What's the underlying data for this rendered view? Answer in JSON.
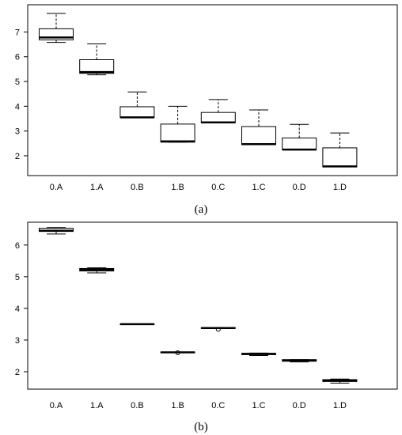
{
  "chart_data": [
    {
      "type": "boxplot",
      "panel_label": "(a)",
      "categories": [
        "0.A",
        "1.A",
        "0.B",
        "1.B",
        "0.C",
        "1.C",
        "0.D",
        "1.D"
      ],
      "yticks": [
        2,
        3,
        4,
        5,
        6,
        7
      ],
      "ylim": [
        1.2,
        8.1
      ],
      "boxes": [
        {
          "min": 6.58,
          "q1": 6.68,
          "median": 6.78,
          "q3": 7.13,
          "max": 7.75
        },
        {
          "min": 5.27,
          "q1": 5.33,
          "median": 5.38,
          "q3": 5.88,
          "max": 6.52
        },
        {
          "min": 3.55,
          "q1": 3.55,
          "median": 3.55,
          "q3": 3.98,
          "max": 4.58
        },
        {
          "min": 2.55,
          "q1": 2.55,
          "median": 2.58,
          "q3": 3.28,
          "max": 4.0
        },
        {
          "min": 3.33,
          "q1": 3.33,
          "median": 3.35,
          "q3": 3.75,
          "max": 4.27
        },
        {
          "min": 2.45,
          "q1": 2.45,
          "median": 2.47,
          "q3": 3.18,
          "max": 3.85
        },
        {
          "min": 2.25,
          "q1": 2.25,
          "median": 2.25,
          "q3": 2.72,
          "max": 3.27
        },
        {
          "min": 1.55,
          "q1": 1.55,
          "median": 1.57,
          "q3": 2.32,
          "max": 2.92
        }
      ],
      "outliers": []
    },
    {
      "type": "boxplot",
      "panel_label": "(b)",
      "categories": [
        "0.A",
        "1.A",
        "0.B",
        "1.B",
        "0.C",
        "1.C",
        "0.D",
        "1.D"
      ],
      "yticks": [
        2,
        3,
        4,
        5,
        6
      ],
      "ylim": [
        1.45,
        6.72
      ],
      "boxes": [
        {
          "min": 6.35,
          "q1": 6.43,
          "median": 6.45,
          "q3": 6.53,
          "max": 6.55
        },
        {
          "min": 5.12,
          "q1": 5.18,
          "median": 5.22,
          "q3": 5.26,
          "max": 5.28
        },
        {
          "min": 3.5,
          "q1": 3.5,
          "median": 3.5,
          "q3": 3.5,
          "max": 3.5
        },
        {
          "min": 2.6,
          "q1": 2.6,
          "median": 2.61,
          "q3": 2.62,
          "max": 2.62
        },
        {
          "min": 3.37,
          "q1": 3.37,
          "median": 3.38,
          "q3": 3.39,
          "max": 3.39
        },
        {
          "min": 2.51,
          "q1": 2.54,
          "median": 2.56,
          "q3": 2.58,
          "max": 2.59
        },
        {
          "min": 2.31,
          "q1": 2.33,
          "median": 2.36,
          "q3": 2.38,
          "max": 2.38
        },
        {
          "min": 1.64,
          "q1": 1.69,
          "median": 1.72,
          "q3": 1.75,
          "max": 1.77
        }
      ],
      "outliers": [
        {
          "category": "1.B",
          "y": 2.6
        },
        {
          "category": "0.C",
          "y": 3.34
        }
      ]
    }
  ]
}
